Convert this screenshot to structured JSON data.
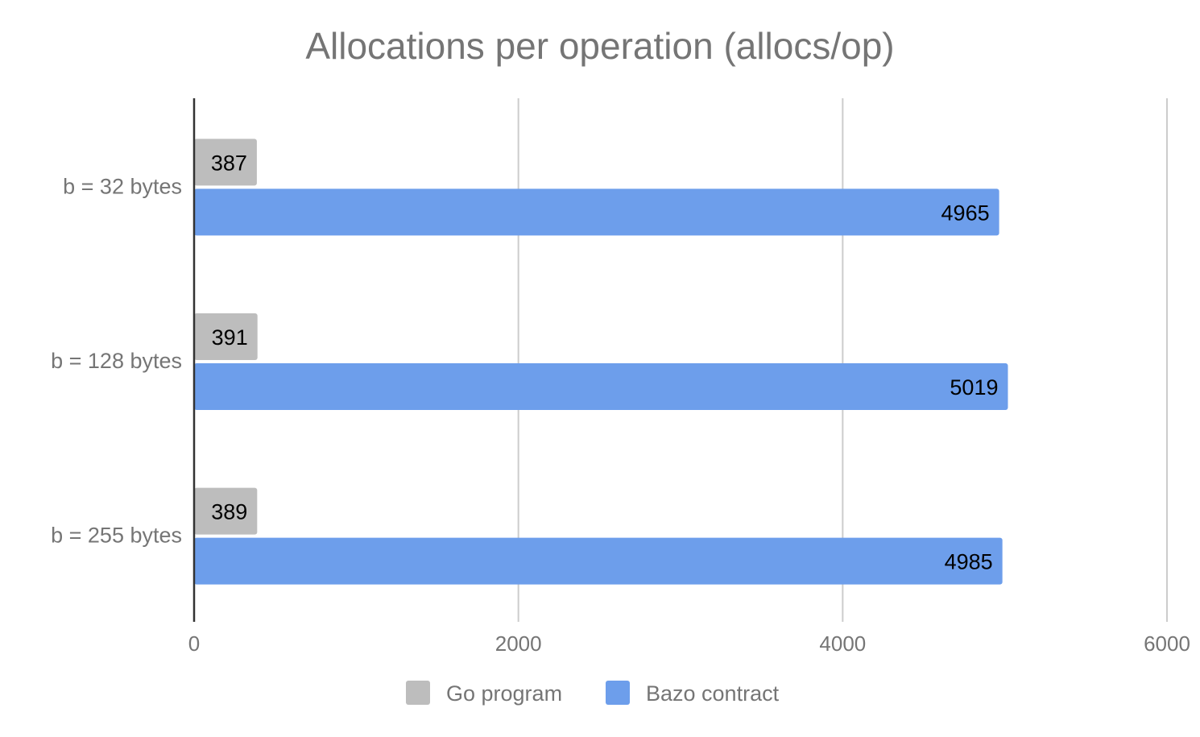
{
  "chart_data": {
    "type": "bar",
    "orientation": "horizontal",
    "title": "Allocations per operation (allocs/op)",
    "categories": [
      "b = 32 bytes",
      "b = 128 bytes",
      "b = 255 bytes"
    ],
    "series": [
      {
        "name": "Go program",
        "values": [
          387,
          391,
          389
        ],
        "color": "#bdbdbd"
      },
      {
        "name": "Bazo contract",
        "values": [
          4965,
          5019,
          4985
        ],
        "color": "#6d9eeb"
      }
    ],
    "x_ticks": [
      "0",
      "2000",
      "4000",
      "6000"
    ],
    "xlim": [
      0,
      6000
    ],
    "xlabel": "",
    "ylabel": "",
    "grid": true,
    "data_labels": true,
    "legend_position": "bottom"
  }
}
